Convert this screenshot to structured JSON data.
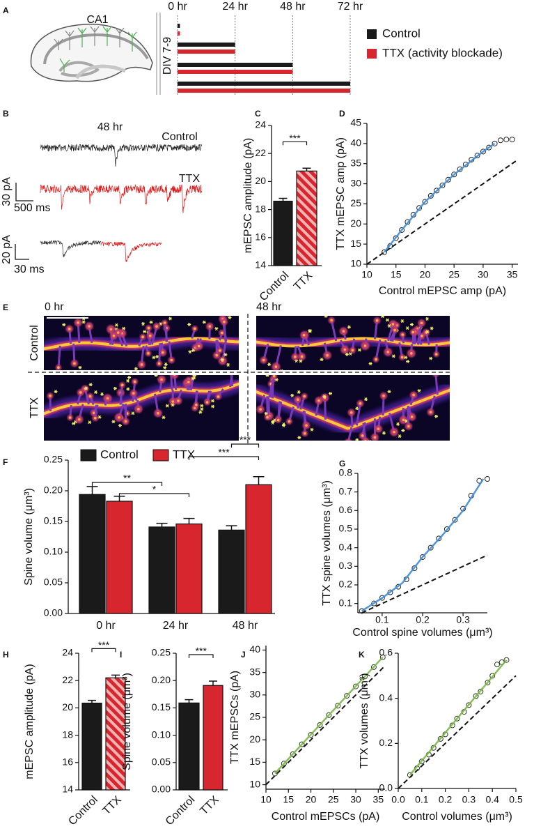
{
  "panel_labels": [
    "A",
    "B",
    "C",
    "D",
    "E",
    "F",
    "G",
    "H",
    "I",
    "J",
    "K"
  ],
  "schematic": {
    "region_label": "CA1"
  },
  "traces": {
    "title": "48 hr",
    "control_label": "Control",
    "ttx_label": "TTX",
    "scale1_y": "30 pA",
    "scale1_x": "500 ms",
    "scale2_y": "20 pA",
    "scale2_x": "30 ms"
  },
  "images": {
    "time_labels": [
      "0 hr",
      "48 hr"
    ],
    "row_labels": [
      "Control",
      "TTX"
    ]
  },
  "chart_data": [
    {
      "type": "timeline",
      "xlim": [
        0,
        72
      ],
      "xticks": [
        {
          "value": 0,
          "label": "0 hr"
        },
        {
          "value": 24,
          "label": "24 hr"
        },
        {
          "value": 48,
          "label": "48 hr"
        },
        {
          "value": 72,
          "label": "72 hr"
        }
      ],
      "y_label": "DIV 7-9",
      "categories": [
        null,
        null,
        null,
        null
      ],
      "series": [
        {
          "name": "Control",
          "color": "#1a1a1a",
          "values": [
            1,
            24,
            48,
            72
          ]
        },
        {
          "name": "TTX (activity blockade)",
          "color": "#d7262e",
          "values": [
            1,
            24,
            48,
            72
          ]
        }
      ]
    },
    {
      "type": "bar",
      "y_label": "mEPSC amplitude (pA)",
      "categories": [
        "Control",
        "TTX"
      ],
      "values": [
        18.6,
        20.75
      ],
      "errors": [
        0.2,
        0.2
      ],
      "colors": [
        "#1a1a1a",
        "#d7262e"
      ],
      "hatched": [
        false,
        true
      ],
      "ylim": [
        14,
        24
      ],
      "yticks": [
        14,
        16,
        18,
        20,
        22,
        24
      ],
      "annotations": [
        "***"
      ]
    },
    {
      "type": "scatter",
      "x_label": "Control mEPSC amp (pA)",
      "y_label": "TTX mEPSC amp (pA)",
      "xlim": [
        10,
        36
      ],
      "ylim": [
        10,
        45
      ],
      "xticks": [
        10,
        15,
        20,
        25,
        30,
        35
      ],
      "yticks": [
        10,
        15,
        20,
        25,
        30,
        35,
        40,
        45
      ],
      "identity_line": true,
      "series": [
        {
          "kind": "points",
          "color": "#222222",
          "x": [
            13,
            14,
            15,
            16,
            17,
            18,
            19,
            20,
            21,
            22,
            23,
            24,
            25,
            26,
            27,
            28,
            29,
            30,
            31,
            32,
            33,
            34,
            35
          ],
          "values": [
            13,
            14.5,
            16.5,
            18.5,
            20.5,
            22.3,
            24,
            25.5,
            27,
            28.3,
            29.6,
            31,
            32.3,
            33.6,
            34.8,
            36,
            37,
            38,
            39,
            40,
            40.8,
            41,
            41
          ]
        },
        {
          "kind": "line",
          "color": "#3d8bd4",
          "x": [
            13,
            16,
            20,
            25,
            30,
            32
          ],
          "values": [
            13,
            18.5,
            25.5,
            32.3,
            38,
            40
          ]
        }
      ]
    },
    {
      "type": "grouped_bar",
      "y_label": "Spine volume (μm³)",
      "categories": [
        "0 hr",
        "24 hr",
        "48 hr"
      ],
      "series": [
        {
          "name": "Control",
          "color": "#1a1a1a",
          "values": [
            0.194,
            0.141,
            0.136
          ],
          "errors": [
            0.013,
            0.006,
            0.007
          ]
        },
        {
          "name": "TTX",
          "color": "#d7262e",
          "values": [
            0.183,
            0.146,
            0.21
          ],
          "errors": [
            0.008,
            0.009,
            0.013
          ]
        }
      ],
      "ylim": [
        0,
        0.25
      ],
      "yticks": [
        {
          "value": 0,
          "label": "0.00"
        },
        {
          "value": 0.05,
          "label": "0.05"
        },
        {
          "value": 0.1,
          "label": "0.10"
        },
        {
          "value": 0.15,
          "label": "0.15"
        },
        {
          "value": 0.2,
          "label": "0.20"
        },
        {
          "value": 0.25,
          "label": "0.25"
        }
      ],
      "annotations": [
        "**",
        "*",
        "***",
        "***"
      ]
    },
    {
      "type": "scatter",
      "x_label": "Control spine volumes (μm³)",
      "y_label": "TTX spine volumes (μm³)",
      "xlim": [
        0.04,
        0.36
      ],
      "ylim": [
        0.05,
        0.8
      ],
      "xticks": [
        0.1,
        0.2,
        0.3
      ],
      "yticks": [
        0.1,
        0.2,
        0.3,
        0.4,
        0.5,
        0.6,
        0.7,
        0.8
      ],
      "identity_line": true,
      "series": [
        {
          "kind": "points",
          "color": "#222222",
          "x": [
            0.05,
            0.08,
            0.1,
            0.12,
            0.14,
            0.16,
            0.18,
            0.2,
            0.22,
            0.24,
            0.26,
            0.28,
            0.3,
            0.32,
            0.34,
            0.36
          ],
          "values": [
            0.06,
            0.1,
            0.13,
            0.16,
            0.19,
            0.23,
            0.29,
            0.35,
            0.4,
            0.45,
            0.5,
            0.55,
            0.61,
            0.68,
            0.76,
            0.77
          ]
        },
        {
          "kind": "line",
          "color": "#3d8bd4",
          "x": [
            0.05,
            0.1,
            0.15,
            0.2,
            0.25,
            0.3,
            0.35
          ],
          "values": [
            0.06,
            0.13,
            0.21,
            0.35,
            0.47,
            0.6,
            0.77
          ]
        }
      ]
    },
    {
      "type": "bar",
      "y_label": "mEPSC amplitude (pA)",
      "categories": [
        "Control",
        "TTX"
      ],
      "values": [
        20.35,
        22.2
      ],
      "errors": [
        0.2,
        0.2
      ],
      "colors": [
        "#1a1a1a",
        "#d7262e"
      ],
      "hatched": [
        false,
        true
      ],
      "ylim": [
        14,
        24
      ],
      "yticks": [
        14,
        16,
        18,
        20,
        22,
        24
      ],
      "annotations": [
        "***"
      ]
    },
    {
      "type": "bar",
      "y_label": "Spine volume (μm³)",
      "categories": [
        "Control",
        "TTX"
      ],
      "values": [
        0.159,
        0.191
      ],
      "errors": [
        0.006,
        0.008
      ],
      "colors": [
        "#1a1a1a",
        "#d7262e"
      ],
      "hatched": [
        false,
        false
      ],
      "ylim": [
        0,
        0.25
      ],
      "yticks": [
        {
          "value": 0,
          "label": "0.00"
        },
        {
          "value": 0.05,
          "label": "0.05"
        },
        {
          "value": 0.1,
          "label": "0.10"
        },
        {
          "value": 0.15,
          "label": "0.15"
        },
        {
          "value": 0.2,
          "label": "0.20"
        },
        {
          "value": 0.25,
          "label": "0.25"
        }
      ],
      "annotations": [
        "***"
      ]
    },
    {
      "type": "scatter",
      "x_label": "Control mEPSCs (pA)",
      "y_label": "TTX mEPSCs (pA)",
      "xlim": [
        10,
        36.5
      ],
      "ylim": [
        9,
        41
      ],
      "xticks": [
        10,
        15,
        20,
        25,
        30,
        35
      ],
      "yticks": [
        10,
        15,
        20,
        25,
        30,
        35,
        40
      ],
      "identity_line": true,
      "series": [
        {
          "kind": "points",
          "color": "#2b3a1c",
          "x": [
            12,
            14,
            16,
            18,
            20,
            22,
            24,
            26,
            28,
            30,
            32,
            34,
            36
          ],
          "values": [
            12.5,
            14.7,
            16.8,
            19,
            21.1,
            23.3,
            25.5,
            27.6,
            29.8,
            31.9,
            34.1,
            36.2,
            38.4
          ]
        },
        {
          "kind": "line",
          "color": "#7ab648",
          "x": [
            12,
            24,
            36
          ],
          "values": [
            12.5,
            25.5,
            38.4
          ]
        }
      ]
    },
    {
      "type": "scatter",
      "x_label": "Control volumes (μm³)",
      "y_label": "TTX volumes (μm³)",
      "xlim": [
        0,
        0.5
      ],
      "ylim": [
        0,
        0.6
      ],
      "xticks": [
        {
          "value": 0,
          "label": "0.0"
        },
        0.1,
        0.2,
        0.3,
        0.4,
        0.5
      ],
      "yticks": [
        {
          "value": 0,
          "label": "0.0"
        },
        0.2,
        0.4,
        0.6
      ],
      "identity_line": true,
      "series": [
        {
          "kind": "points",
          "color": "#2b3a1c",
          "x": [
            0.05,
            0.08,
            0.1,
            0.13,
            0.15,
            0.18,
            0.2,
            0.23,
            0.25,
            0.28,
            0.3,
            0.33,
            0.35,
            0.38,
            0.4,
            0.42,
            0.44,
            0.46
          ],
          "values": [
            0.06,
            0.09,
            0.12,
            0.15,
            0.18,
            0.22,
            0.24,
            0.28,
            0.31,
            0.34,
            0.37,
            0.41,
            0.43,
            0.47,
            0.5,
            0.55,
            0.56,
            0.57
          ]
        },
        {
          "kind": "line",
          "color": "#7ab648",
          "x": [
            0.05,
            0.25,
            0.46
          ],
          "values": [
            0.06,
            0.31,
            0.57
          ]
        }
      ]
    }
  ]
}
